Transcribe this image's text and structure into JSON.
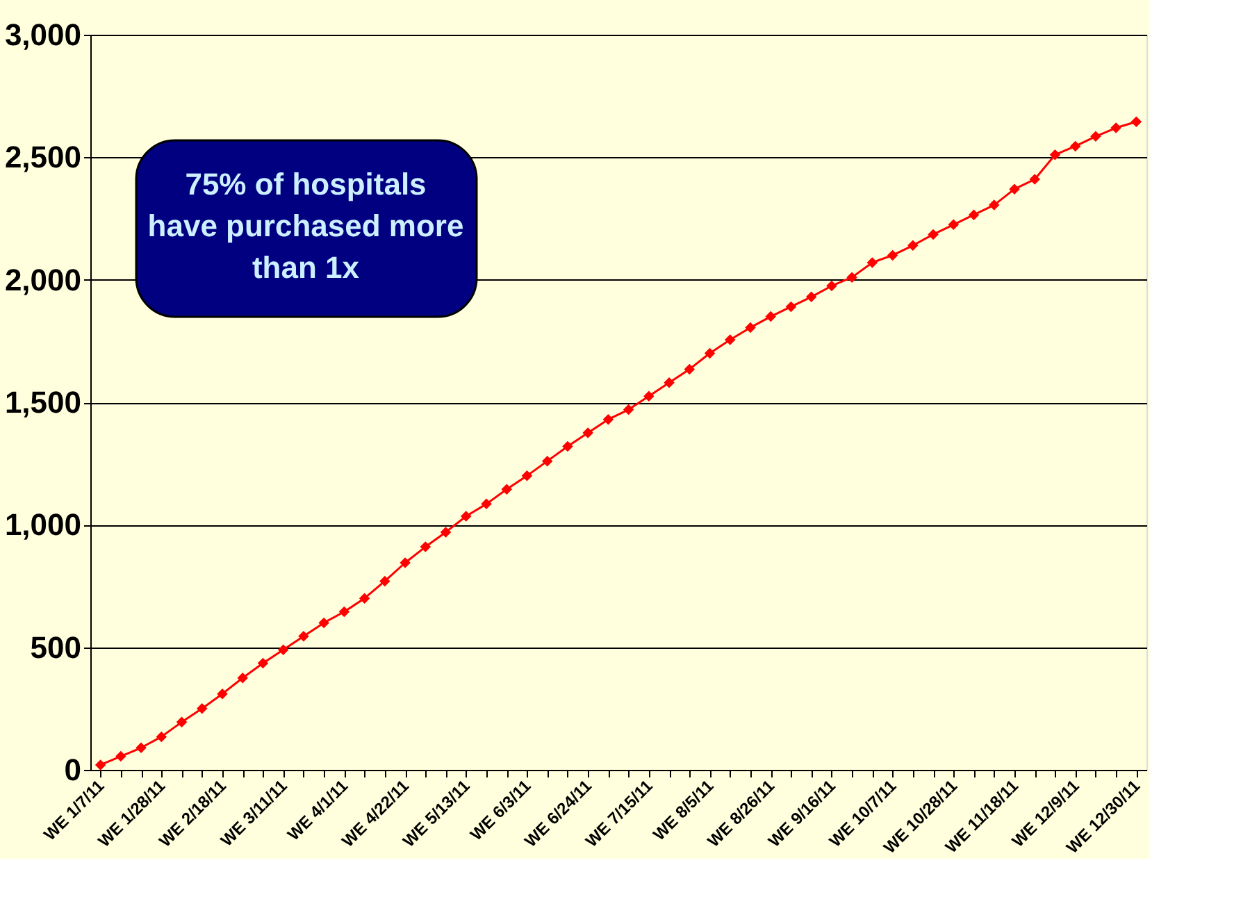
{
  "chart_data": {
    "type": "line",
    "categories": [
      "WE 1/7/11",
      null,
      null,
      "WE 1/28/11",
      null,
      null,
      "WE 2/18/11",
      null,
      null,
      "WE 3/11/11",
      null,
      null,
      "WE 4/1/11",
      null,
      null,
      "WE 4/22/11",
      null,
      null,
      "WE 5/13/11",
      null,
      null,
      "WE 6/3/11",
      null,
      null,
      "WE 6/24/11",
      null,
      null,
      "WE 7/15/11",
      null,
      null,
      "WE 8/5/11",
      null,
      null,
      "WE 8/26/11",
      null,
      null,
      "WE 9/16/11",
      null,
      null,
      "WE 10/7/11",
      null,
      null,
      "WE 10/28/11",
      null,
      null,
      "WE 11/18/11",
      null,
      null,
      "WE 12/9/11",
      null,
      null,
      "WE 12/30/11"
    ],
    "series": [
      {
        "color": "#ff0000",
        "values": [
          20,
          55,
          90,
          135,
          195,
          250,
          310,
          375,
          435,
          490,
          545,
          600,
          645,
          700,
          770,
          845,
          910,
          970,
          1035,
          1085,
          1145,
          1200,
          1260,
          1320,
          1375,
          1430,
          1470,
          1525,
          1580,
          1635,
          1700,
          1755,
          1805,
          1850,
          1890,
          1930,
          1975,
          2010,
          2070,
          2100,
          2140,
          2185,
          2225,
          2265,
          2305,
          2370,
          2410,
          2510,
          2545,
          2585,
          2620,
          2645
        ]
      }
    ],
    "ylim": [
      0,
      3000
    ],
    "yticks": [
      {
        "value": 0,
        "label": "0"
      },
      {
        "value": 500,
        "label": "500"
      },
      {
        "value": 1000,
        "label": "1,000"
      },
      {
        "value": 1500,
        "label": "1,500"
      },
      {
        "value": 2000,
        "label": "2,000"
      },
      {
        "value": 2500,
        "label": "2,500"
      },
      {
        "value": 3000,
        "label": "3,000"
      }
    ],
    "grid": "y",
    "marker": "diamond",
    "line_style": "solid",
    "annotations": [
      "75% of hospitals\nhave purchased more\nthan 1x"
    ]
  }
}
